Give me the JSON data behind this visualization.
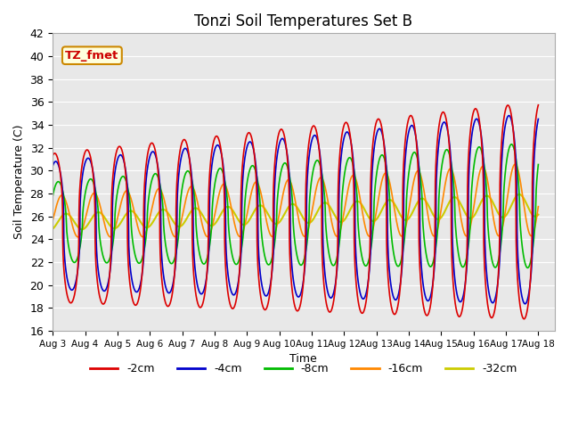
{
  "title": "Tonzi Soil Temperatures Set B",
  "xlabel": "Time",
  "ylabel": "Soil Temperature (C)",
  "ylim": [
    16,
    42
  ],
  "xlim": [
    0,
    15.5
  ],
  "bg_color": "#e8e8e8",
  "fig_color": "#ffffff",
  "annotation_text": "TZ_fmet",
  "annotation_bg": "#ffffdd",
  "annotation_border": "#cc8800",
  "annotation_text_color": "#cc0000",
  "grid_color": "#ffffff",
  "xtick_labels": [
    "Aug 3",
    "Aug 4",
    "Aug 5",
    "Aug 6",
    "Aug 7",
    "Aug 8",
    "Aug 9",
    "Aug 10",
    "Aug 11",
    "Aug 12",
    "Aug 13",
    "Aug 14",
    "Aug 15",
    "Aug 16",
    "Aug 17",
    "Aug 18"
  ],
  "series": {
    "-2cm": {
      "color": "#dd0000",
      "lw": 1.2
    },
    "-4cm": {
      "color": "#0000cc",
      "lw": 1.2
    },
    "-8cm": {
      "color": "#00bb00",
      "lw": 1.2
    },
    "-16cm": {
      "color": "#ff8800",
      "lw": 1.2
    },
    "-32cm": {
      "color": "#cccc00",
      "lw": 1.5
    }
  }
}
